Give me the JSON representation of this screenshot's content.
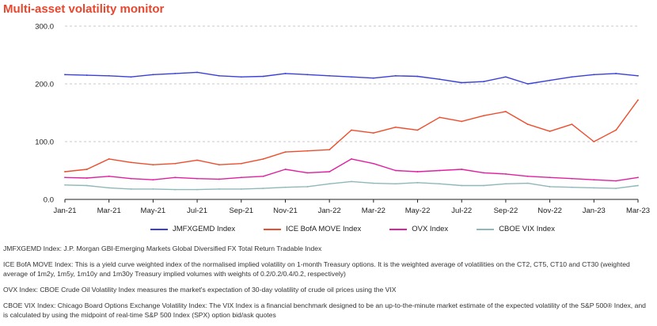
{
  "title": "Multi-asset volatility monitor",
  "chart_data": {
    "type": "line",
    "x": [
      "Jan-21",
      "Feb-21",
      "Mar-21",
      "Apr-21",
      "May-21",
      "Jun-21",
      "Jul-21",
      "Aug-21",
      "Sep-21",
      "Oct-21",
      "Nov-21",
      "Dec-21",
      "Jan-22",
      "Feb-22",
      "Mar-22",
      "Apr-22",
      "May-22",
      "Jun-22",
      "Jul-22",
      "Aug-22",
      "Sep-22",
      "Oct-22",
      "Nov-22",
      "Dec-22",
      "Jan-23",
      "Feb-23",
      "Mar-23"
    ],
    "x_tick_labels": [
      "Jan-21",
      "Mar-21",
      "May-21",
      "Jul-21",
      "Sep-21",
      "Nov-21",
      "Jan-22",
      "Mar-22",
      "May-22",
      "Jul-22",
      "Sep-22",
      "Nov-22",
      "Jan-23",
      "Mar-23"
    ],
    "y_tick_labels": [
      "0.0",
      "100.0",
      "200.0",
      "300.0"
    ],
    "ylim": [
      0,
      300
    ],
    "grid": "horizontal dashed",
    "legend_position": "bottom",
    "series": [
      {
        "name": "JMFXGEMD Index",
        "color": "#3a3fd8",
        "values": [
          216,
          215,
          214,
          212,
          216,
          218,
          220,
          214,
          212,
          213,
          218,
          216,
          214,
          212,
          210,
          214,
          213,
          208,
          202,
          204,
          212,
          200,
          206,
          212,
          216,
          218,
          214
        ]
      },
      {
        "name": "ICE BofA MOVE Index",
        "color": "#ee4d2d",
        "values": [
          48,
          52,
          70,
          64,
          60,
          62,
          68,
          60,
          62,
          70,
          82,
          84,
          86,
          120,
          115,
          125,
          120,
          142,
          135,
          145,
          152,
          130,
          118,
          130,
          100,
          120,
          172
        ]
      },
      {
        "name": "OVX Index",
        "color": "#e020a0",
        "values": [
          38,
          37,
          40,
          36,
          34,
          38,
          36,
          35,
          38,
          40,
          52,
          46,
          48,
          70,
          62,
          50,
          48,
          50,
          52,
          46,
          44,
          40,
          38,
          36,
          34,
          32,
          38
        ]
      },
      {
        "name": "CBOE VIX Index",
        "color": "#8fb8b8",
        "values": [
          25,
          24,
          20,
          18,
          18,
          17,
          17,
          18,
          18,
          19,
          21,
          22,
          27,
          31,
          28,
          27,
          29,
          27,
          24,
          24,
          27,
          28,
          22,
          21,
          20,
          19,
          24
        ]
      }
    ]
  },
  "notes": [
    "JMFXGEMD Index: J.P. Morgan GBI-Emerging Markets Global Diversified FX Total Return Tradable Index",
    "ICE BofA MOVE Index: This is a yield curve weighted index of the normalised implied volatility on 1-month Treasury options. It is the weighted average of volatilities on the CT2, CT5, CT10 and CT30 (weighted average of 1m2y, 1m5y, 1m10y and 1m30y Treasury implied volumes with weights of 0.2/0.2/0.4/0.2, respectively)",
    "OVX Index: CBOE Crude Oil Volatility Index measures the market's expectation of 30-day volatility of crude oil prices using the VIX",
    "CBOE VIX Index: Chicago Board Options Exchange Volatility Index: The VIX Index is a financial benchmark designed to be an up-to-the-minute market estimate of the expected volatility of the S&P 500® Index, and is calculated by using the midpoint of real-time S&P 500 Index (SPX) option bid/ask quotes"
  ]
}
